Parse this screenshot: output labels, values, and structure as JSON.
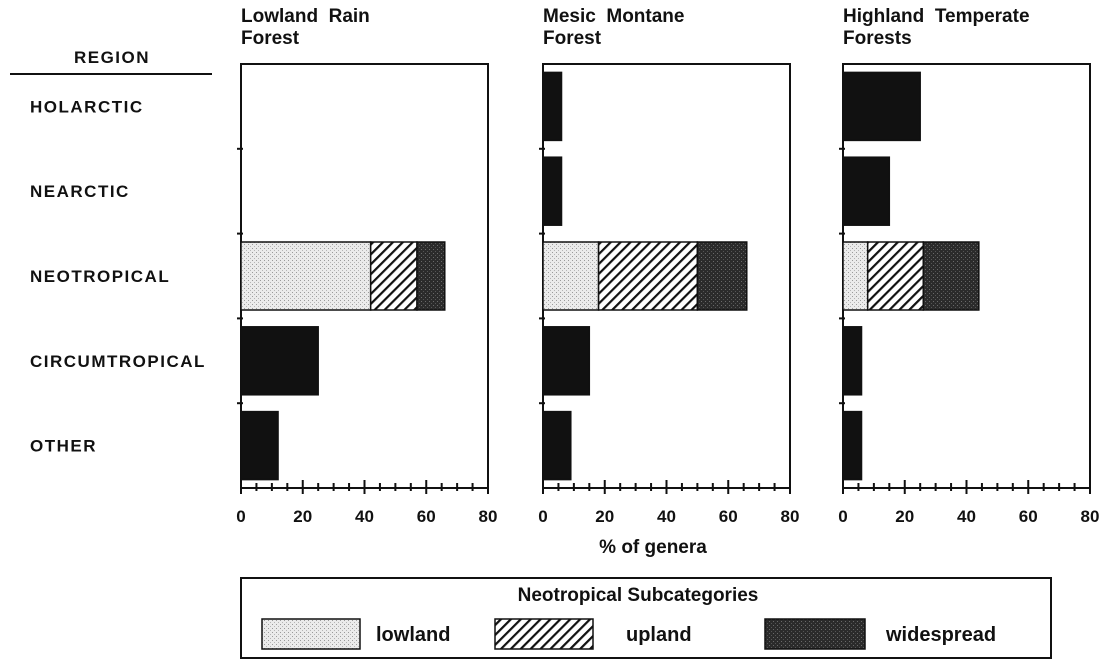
{
  "region_header": "REGION",
  "chart_data": {
    "type": "bar",
    "stacked": true,
    "orientation": "horizontal",
    "categories": [
      "HOLARCTIC",
      "NEARCTIC",
      "NEOTROPICAL",
      "CIRCUMTROPICAL",
      "OTHER"
    ],
    "xlabel": "% of genera",
    "xlim": [
      0,
      80
    ],
    "xticks": [
      0,
      20,
      40,
      60,
      80
    ],
    "panels": [
      {
        "title_lines": [
          "Lowland  Rain",
          "Forest"
        ],
        "bars": [
          {
            "category": "HOLARCTIC",
            "value": 0
          },
          {
            "category": "NEARCTIC",
            "value": 0
          },
          {
            "category": "NEOTROPICAL",
            "segments": {
              "lowland": 42,
              "upland": 15,
              "widespread": 9
            }
          },
          {
            "category": "CIRCUMTROPICAL",
            "value": 25
          },
          {
            "category": "OTHER",
            "value": 12
          }
        ]
      },
      {
        "title_lines": [
          "Mesic  Montane",
          "Forest"
        ],
        "bars": [
          {
            "category": "HOLARCTIC",
            "value": 6
          },
          {
            "category": "NEARCTIC",
            "value": 6
          },
          {
            "category": "NEOTROPICAL",
            "segments": {
              "lowland": 18,
              "upland": 32,
              "widespread": 16
            }
          },
          {
            "category": "CIRCUMTROPICAL",
            "value": 15
          },
          {
            "category": "OTHER",
            "value": 9
          }
        ]
      },
      {
        "title_lines": [
          "Highland  Temperate",
          "Forests"
        ],
        "bars": [
          {
            "category": "HOLARCTIC",
            "value": 25
          },
          {
            "category": "NEARCTIC",
            "value": 15
          },
          {
            "category": "NEOTROPICAL",
            "segments": {
              "lowland": 8,
              "upland": 18,
              "widespread": 18
            }
          },
          {
            "category": "CIRCUMTROPICAL",
            "value": 6
          },
          {
            "category": "OTHER",
            "value": 6
          }
        ]
      }
    ],
    "legend": {
      "title": "Neotropical  Subcategories",
      "placement": "bottom",
      "items": [
        {
          "key": "lowland",
          "label": "lowland",
          "pattern": "stipple",
          "color": "#e6e6e6"
        },
        {
          "key": "upland",
          "label": "upland",
          "pattern": "diagonal-hatch",
          "color": "#ffffff"
        },
        {
          "key": "widespread",
          "label": "widespread",
          "pattern": "dark-stipple",
          "color": "#2a2a2a"
        }
      ]
    },
    "other_bar_color": "#111111",
    "grid": false
  }
}
